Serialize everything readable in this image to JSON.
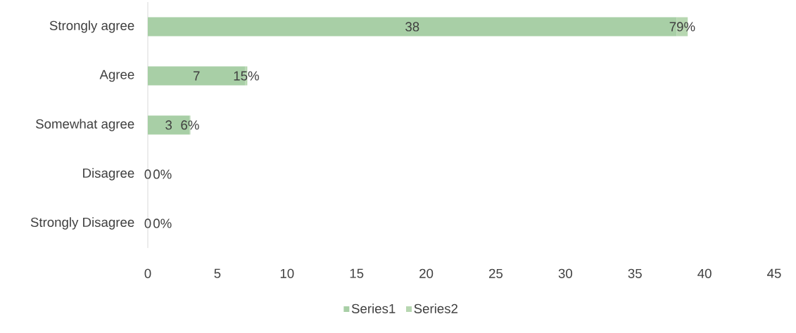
{
  "chart_data": {
    "type": "bar",
    "orientation": "horizontal",
    "stacked": true,
    "categories": [
      "Strongly agree",
      "Agree",
      "Somewhat agree",
      "Disagree",
      "Strongly Disagree"
    ],
    "series": [
      {
        "name": "Series1",
        "color": "#a8cfa6",
        "values": [
          38,
          7,
          3,
          0,
          0
        ],
        "value_labels": [
          "38",
          "7",
          "3",
          "0",
          "0"
        ]
      },
      {
        "name": "Series2",
        "color": "#b7d7b1",
        "values": [
          0.79,
          0.15,
          0.06,
          0,
          0
        ],
        "value_labels": [
          "79%",
          "15%",
          "6%",
          "0%",
          "0%"
        ]
      }
    ],
    "xlim": [
      0,
      45
    ],
    "xticks": [
      0,
      5,
      10,
      15,
      20,
      25,
      30,
      35,
      40,
      45
    ],
    "grid": false,
    "legend": "bottom"
  }
}
